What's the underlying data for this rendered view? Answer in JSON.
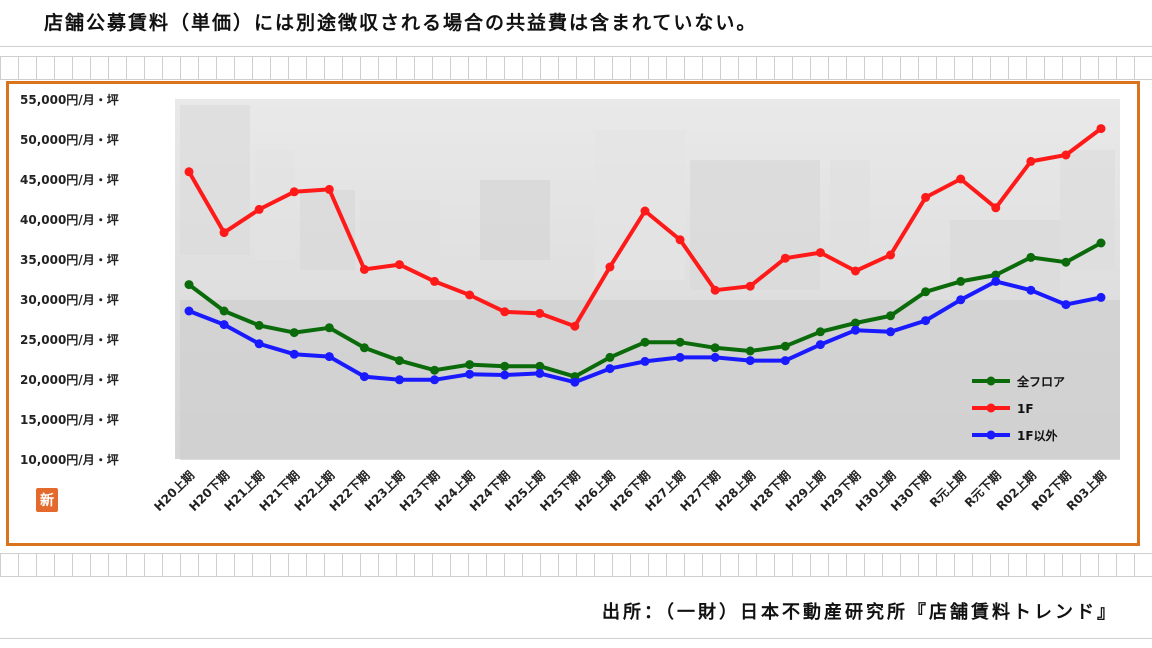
{
  "header_note": "店舗公募賃料（単価）には別途徴収される場合の共益費は含まれていない。",
  "source_note": "出所：（一財）日本不動産研究所『店舗賃料トレンド』",
  "badge_text": "新",
  "colors": {
    "frame": "#d9731e",
    "series_all": "#0b6b0b",
    "series_1f": "#ff1a1a",
    "series_other": "#1a1aff"
  },
  "chart_data": {
    "type": "line",
    "title": "",
    "xlabel": "",
    "ylabel": "",
    "ylim": [
      10000,
      55000
    ],
    "yticks": [
      {
        "value": 55000,
        "label": "55,000円/月・坪"
      },
      {
        "value": 50000,
        "label": "50,000円/月・坪"
      },
      {
        "value": 45000,
        "label": "45,000円/月・坪"
      },
      {
        "value": 40000,
        "label": "40,000円/月・坪"
      },
      {
        "value": 35000,
        "label": "35,000円/月・坪"
      },
      {
        "value": 30000,
        "label": "30,000円/月・坪"
      },
      {
        "value": 25000,
        "label": "25,000円/月・坪"
      },
      {
        "value": 20000,
        "label": "20,000円/月・坪"
      },
      {
        "value": 15000,
        "label": "15,000円/月・坪"
      },
      {
        "value": 10000,
        "label": "10,000円/月・坪"
      }
    ],
    "categories": [
      "H20上期",
      "H20下期",
      "H21上期",
      "H21下期",
      "H22上期",
      "H22下期",
      "H23上期",
      "H23下期",
      "H24上期",
      "H24下期",
      "H25上期",
      "H25下期",
      "H26上期",
      "H26下期",
      "H27上期",
      "H27下期",
      "H28上期",
      "H28下期",
      "H29上期",
      "H29下期",
      "H30上期",
      "H30下期",
      "R元上期",
      "R元下期",
      "R02上期",
      "R02下期",
      "R03上期"
    ],
    "legend_position": "bottom-right",
    "grid": false,
    "series": [
      {
        "name": "全フロア",
        "color": "#0b6b0b",
        "values": [
          31800,
          28500,
          26700,
          25800,
          26400,
          23900,
          22300,
          21100,
          21800,
          21600,
          21600,
          20300,
          22700,
          24600,
          24600,
          23900,
          23500,
          24100,
          25900,
          27000,
          27900,
          30900,
          32200,
          33000,
          35200,
          34600,
          37000
        ]
      },
      {
        "name": "1F",
        "color": "#ff1a1a",
        "values": [
          45900,
          38300,
          41200,
          43400,
          43700,
          33700,
          34300,
          32200,
          30500,
          28400,
          28200,
          26600,
          34000,
          41000,
          37400,
          31100,
          31600,
          35100,
          35800,
          33500,
          35500,
          42700,
          45000,
          41400,
          47200,
          48000,
          51300
        ]
      },
      {
        "name": "1F以外",
        "color": "#1a1aff",
        "values": [
          28500,
          26800,
          24400,
          23100,
          22800,
          20300,
          19900,
          19900,
          20600,
          20500,
          20700,
          19600,
          21300,
          22200,
          22700,
          22700,
          22300,
          22300,
          24300,
          26100,
          25900,
          27300,
          29900,
          32200,
          31100,
          29300,
          30200
        ]
      }
    ]
  }
}
